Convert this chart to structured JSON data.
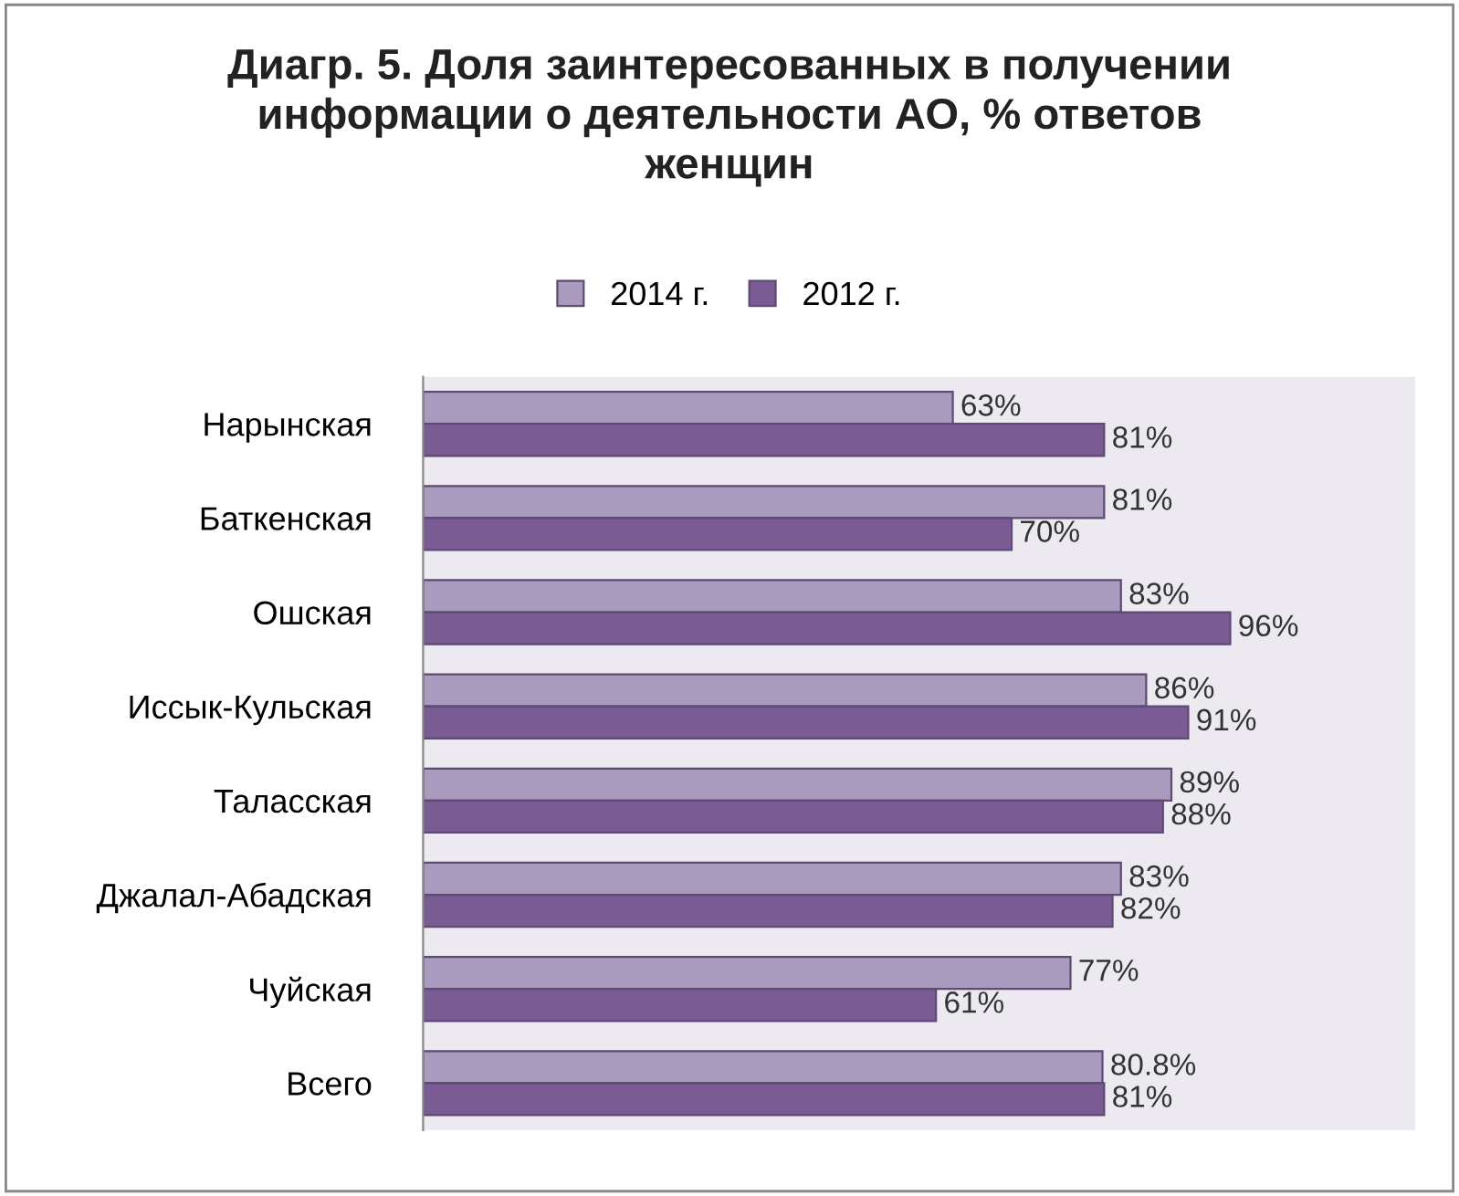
{
  "chart_data": {
    "type": "bar",
    "orientation": "horizontal",
    "title": "Диагр. 5. Доля заинтересованных в получении\nинформации о деятельности АО, % ответов\nженщин",
    "categories": [
      "Нарынская",
      "Баткенская",
      "Ошская",
      "Иссык-Кульская",
      "Таласская",
      "Джалал-Абадская",
      "Чуйская",
      "Всего"
    ],
    "series": [
      {
        "name": "2014 г.",
        "color": "#a99bbd",
        "values": [
          63,
          81,
          83,
          86,
          89,
          83,
          77,
          80.8
        ],
        "value_labels": [
          "63%",
          "81%",
          "83%",
          "86%",
          "89%",
          "83%",
          "77%",
          "80.8%"
        ]
      },
      {
        "name": "2012 г.",
        "color": "#7b5b94",
        "values": [
          81,
          70,
          96,
          91,
          88,
          82,
          61,
          81
        ],
        "value_labels": [
          "81%",
          "70%",
          "96%",
          "91%",
          "88%",
          "82%",
          "61%",
          "81%"
        ]
      }
    ],
    "xlim": [
      0,
      118
    ],
    "legend": "top",
    "tick_labels": "y"
  }
}
